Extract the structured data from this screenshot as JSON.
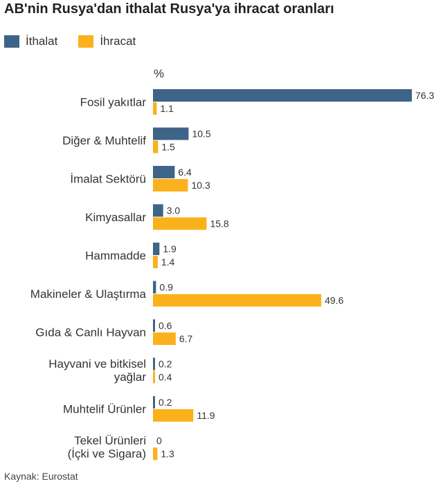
{
  "title": "AB'nin Rusya'dan ithalat Rusya'ya ihracat oranları",
  "unit": "%",
  "source": "Kaynak: Eurostat",
  "colors": {
    "ithalat": "#3e6487",
    "ihracat": "#fbb11c"
  },
  "chart_data": {
    "type": "bar",
    "orientation": "horizontal",
    "title": "AB'nin Rusya'dan ithalat Rusya'ya ihracat oranları",
    "unit": "%",
    "legend_position": "top-left",
    "grid": false,
    "xlim": [
      0,
      76.3
    ],
    "categories": [
      [
        "Fosil yakıtlar"
      ],
      [
        "Diğer & Muhtelif"
      ],
      [
        "İmalat Sektörü"
      ],
      [
        "Kimyasallar"
      ],
      [
        "Hammadde"
      ],
      [
        "Makineler & Ulaştırma"
      ],
      [
        "Gıda & Canlı Hayvan"
      ],
      [
        "Hayvani ve bitkisel",
        "yağlar"
      ],
      [
        "Muhtelif Ürünler"
      ],
      [
        "Tekel Ürünleri",
        "(İçki ve Sigara)"
      ]
    ],
    "series": [
      {
        "name": "İthalat",
        "values": [
          76.3,
          10.5,
          6.4,
          3.0,
          1.9,
          0.9,
          0.6,
          0.2,
          0.2,
          0
        ],
        "labels": [
          "76.3",
          "10.5",
          "6.4",
          "3.0",
          "1.9",
          "0.9",
          "0.6",
          "0.2",
          "0.2",
          "0"
        ]
      },
      {
        "name": "İhracat",
        "values": [
          1.1,
          1.5,
          10.3,
          15.8,
          1.4,
          49.6,
          6.7,
          0.4,
          11.9,
          1.3
        ],
        "labels": [
          "1.1",
          "1.5",
          "10.3",
          "15.8",
          "1.4",
          "49.6",
          "6.7",
          "0.4",
          "11.9",
          "1.3"
        ]
      }
    ]
  }
}
